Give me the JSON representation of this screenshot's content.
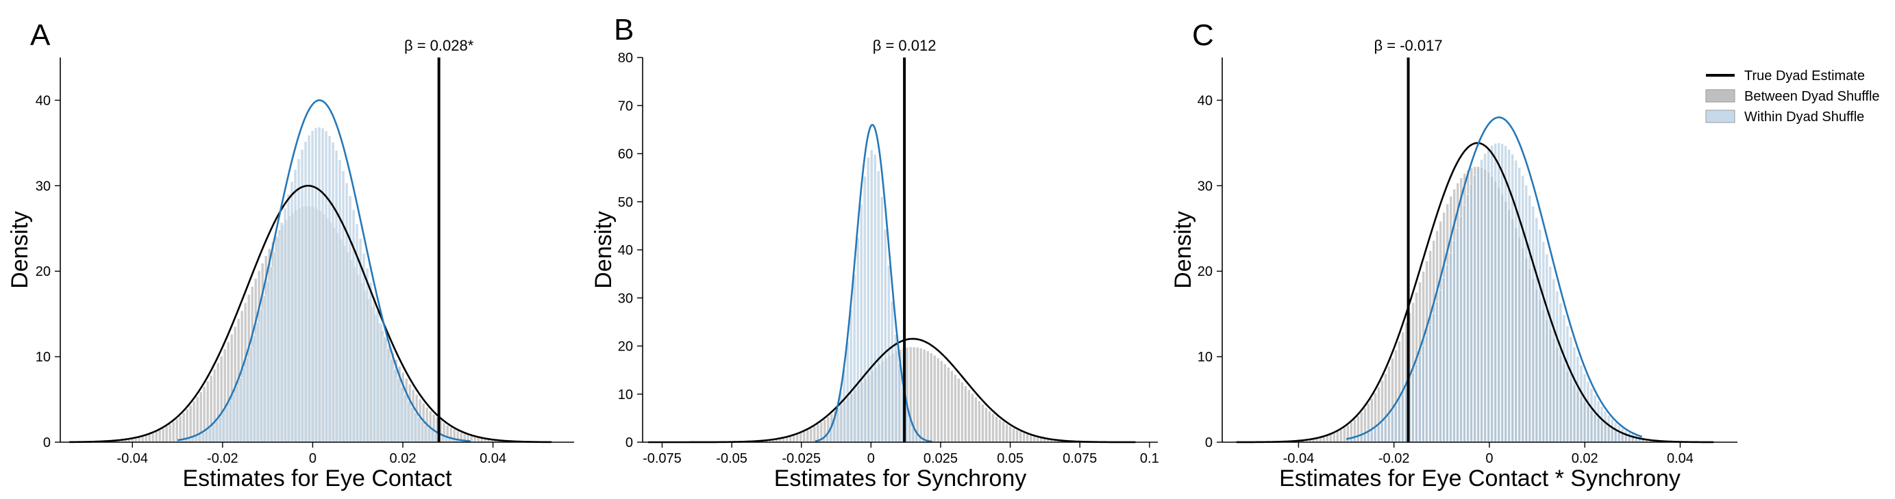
{
  "legend": {
    "placement": "top-right",
    "items": [
      {
        "label": "True Dyad Estimate",
        "kind": "line",
        "color": "#000000"
      },
      {
        "label": "Between Dyad Shuffle",
        "kind": "patch",
        "color": "#bfbfbf"
      },
      {
        "label": "Within Dyad Shuffle",
        "kind": "patch",
        "color": "#c6d9ea"
      }
    ]
  },
  "colors": {
    "between_bar": "#b9b9b9",
    "within_bar": "#a9c4dc",
    "between_kde": "#000000",
    "within_kde": "#2678b8",
    "true_line": "#000000"
  },
  "chart_data": [
    {
      "panel": "A",
      "type": "histogram",
      "xlabel": "Estimates for Eye Contact",
      "ylabel": "Density",
      "xlim": [
        -0.056,
        0.058
      ],
      "ylim": [
        0,
        45
      ],
      "xticks": [
        -0.04,
        -0.02,
        0,
        0.02,
        0.04
      ],
      "xtick_labels": [
        "-0.04",
        "-0.02",
        "0",
        "0.02",
        "0.04"
      ],
      "yticks": [
        0,
        10,
        20,
        30,
        40
      ],
      "true_estimate": 0.028,
      "beta_label": "β = 0.028*",
      "series": [
        {
          "name": "Between Dyad Shuffle",
          "mean": -0.001,
          "sd": 0.0135,
          "peak_density": 30,
          "support": [
            -0.054,
            0.053
          ]
        },
        {
          "name": "Within Dyad Shuffle",
          "mean": 0.0015,
          "sd": 0.0098,
          "peak_density": 40,
          "support": [
            -0.03,
            0.035
          ]
        }
      ]
    },
    {
      "panel": "B",
      "type": "histogram",
      "xlabel": "Estimates for Synchrony",
      "ylabel": "Density",
      "xlim": [
        -0.082,
        0.103
      ],
      "ylim": [
        0,
        80
      ],
      "xticks": [
        -0.075,
        -0.05,
        -0.025,
        0,
        0.025,
        0.05,
        0.075,
        0.1
      ],
      "xtick_labels": [
        "-0.075",
        "-0.05",
        "-0.025",
        "0",
        "0.025",
        "0.05",
        "0.075",
        "0.1"
      ],
      "yticks": [
        0,
        10,
        20,
        30,
        40,
        50,
        60,
        70,
        80
      ],
      "true_estimate": 0.012,
      "beta_label": "β = 0.012",
      "series": [
        {
          "name": "Between Dyad Shuffle",
          "mean": 0.015,
          "sd": 0.0186,
          "peak_density": 21.5,
          "support": [
            -0.08,
            0.095
          ]
        },
        {
          "name": "Within Dyad Shuffle",
          "mean": 0.0005,
          "sd": 0.006,
          "peak_density": 66,
          "support": [
            -0.02,
            0.022
          ]
        }
      ]
    },
    {
      "panel": "C",
      "type": "histogram",
      "xlabel": "Estimates for Eye Contact * Synchrony",
      "ylabel": "Density",
      "xlim": [
        -0.056,
        0.052
      ],
      "ylim": [
        0,
        45
      ],
      "xticks": [
        -0.04,
        -0.02,
        0,
        0.02,
        0.04
      ],
      "xtick_labels": [
        "-0.04",
        "-0.02",
        "0",
        "0.02",
        "0.04"
      ],
      "yticks": [
        0,
        10,
        20,
        30,
        40
      ],
      "true_estimate": -0.017,
      "beta_label": "β = -0.017",
      "series": [
        {
          "name": "Between Dyad Shuffle",
          "mean": -0.0025,
          "sd": 0.0115,
          "peak_density": 35,
          "support": [
            -0.053,
            0.047
          ]
        },
        {
          "name": "Within Dyad Shuffle",
          "mean": 0.002,
          "sd": 0.0105,
          "peak_density": 38,
          "support": [
            -0.03,
            0.032
          ]
        }
      ]
    }
  ]
}
